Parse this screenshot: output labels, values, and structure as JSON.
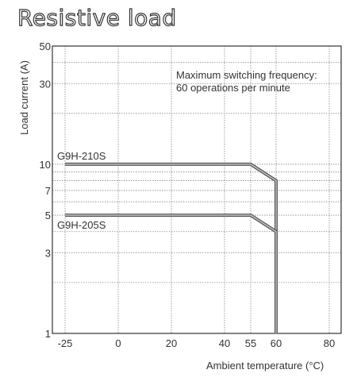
{
  "chart_data": {
    "type": "line",
    "title": "Resistive load",
    "xlabel": "Ambient temperature (°C)",
    "ylabel": "Load current (A)",
    "yscale": "log",
    "xlim": [
      -25,
      85
    ],
    "ylim": [
      1,
      50
    ],
    "x_ticks": [
      {
        "value": -25,
        "label": "-25"
      },
      {
        "value": 0,
        "label": "0"
      },
      {
        "value": 20,
        "label": "20"
      },
      {
        "value": 40,
        "label": "40"
      },
      {
        "value": 55,
        "label": "55"
      },
      {
        "value": 60,
        "label": "60"
      },
      {
        "value": 80,
        "label": "80"
      }
    ],
    "y_ticks": [
      {
        "value": 1,
        "label": "1"
      },
      {
        "value": 3,
        "label": "3"
      },
      {
        "value": 5,
        "label": "5"
      },
      {
        "value": 7,
        "label": "7"
      },
      {
        "value": 10,
        "label": "10"
      },
      {
        "value": 30,
        "label": "30"
      },
      {
        "value": 50,
        "label": "50"
      }
    ],
    "x_grid": [
      -25,
      0,
      20,
      40,
      55,
      60,
      80
    ],
    "y_grid": [
      1,
      2,
      3,
      4,
      5,
      6,
      7,
      8,
      9,
      10,
      20,
      30,
      40,
      50
    ],
    "grid": true,
    "annotation": [
      "Maximum switching frequency:",
      "60 operations per minute"
    ],
    "series": [
      {
        "name": "G9H-210S",
        "x": [
          -25,
          55,
          60,
          60
        ],
        "y": [
          10,
          10,
          8,
          1
        ]
      },
      {
        "name": "G9H-205S",
        "x": [
          -25,
          55,
          60,
          60
        ],
        "y": [
          5,
          5,
          4,
          1
        ]
      }
    ]
  }
}
